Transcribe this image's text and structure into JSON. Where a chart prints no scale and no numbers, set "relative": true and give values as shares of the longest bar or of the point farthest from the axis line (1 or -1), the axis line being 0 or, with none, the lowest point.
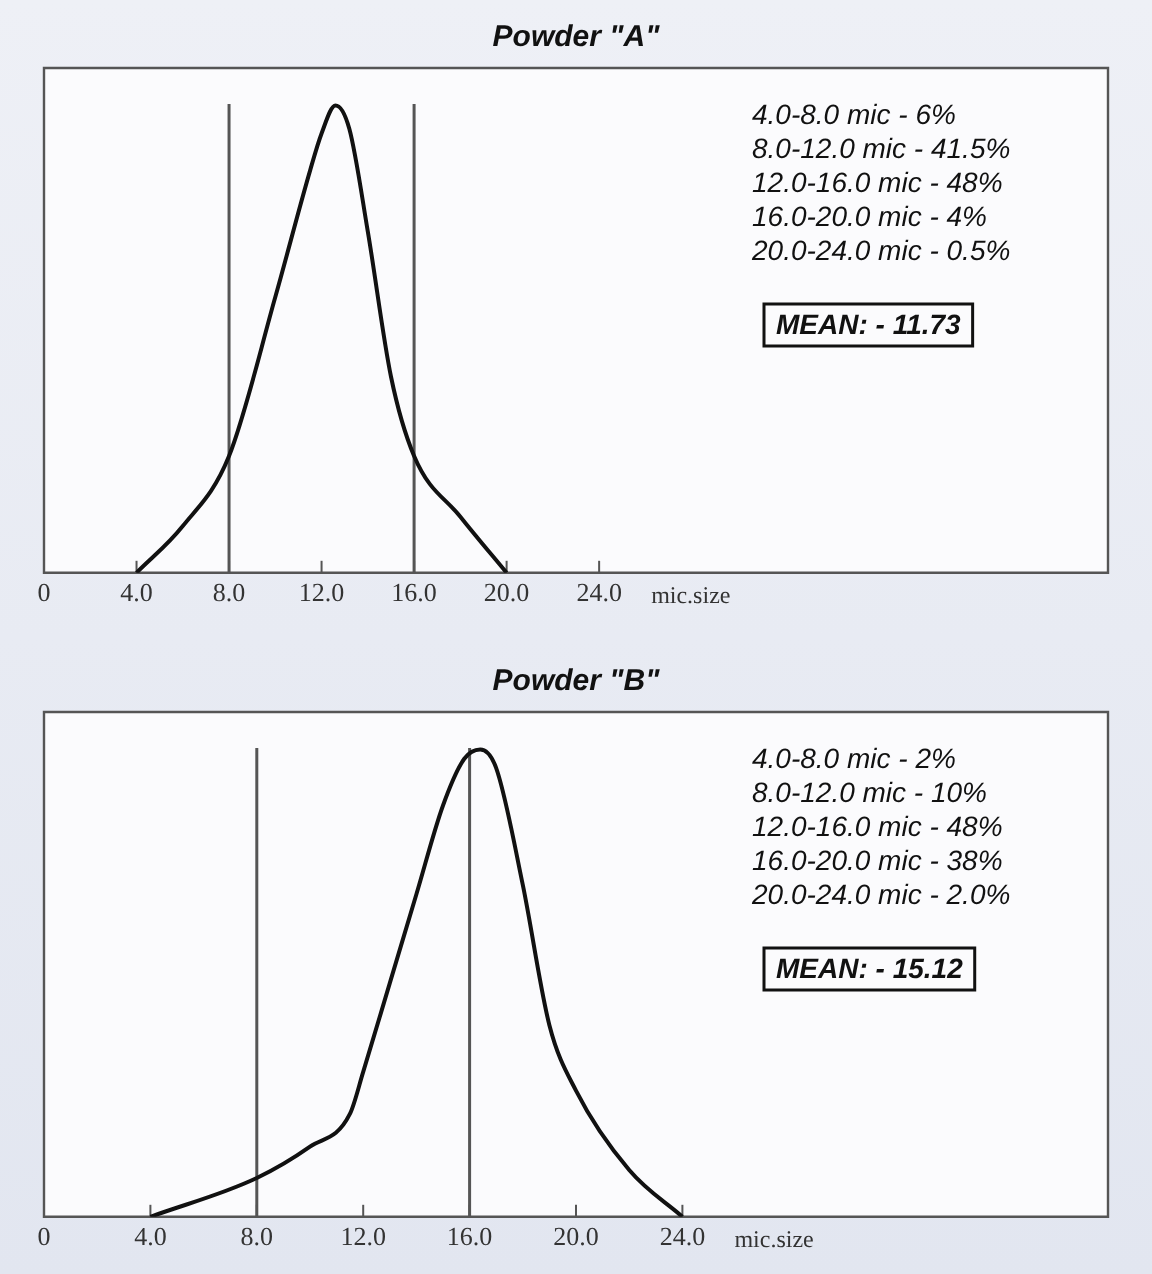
{
  "chart_data": [
    {
      "type": "line",
      "title": "Powder \"A\"",
      "xlabel": "mic.size",
      "relative": true,
      "marker": "none",
      "line_style": "solid",
      "legend": false,
      "xlim": [
        0,
        46
      ],
      "xticks": [
        0,
        {
          "value": 4,
          "label": "4.0"
        },
        {
          "value": 8,
          "label": "8.0"
        },
        {
          "value": 12,
          "label": "12.0"
        },
        {
          "value": 16,
          "label": "16.0"
        },
        {
          "value": 20,
          "label": "20.0"
        },
        {
          "value": 24,
          "label": "24.0"
        }
      ],
      "x": [
        4,
        6,
        8,
        10,
        11.5,
        12,
        12.6,
        13.2,
        14,
        15,
        16,
        18,
        20
      ],
      "series": [
        {
          "color": "#111111",
          "values": [
            0,
            0.1,
            0.25,
            0.59,
            0.86,
            0.94,
            1,
            0.95,
            0.73,
            0.42,
            0.25,
            0.12,
            0
          ]
        }
      ],
      "ref_lines": [
        {
          "axis": "x",
          "value": 8,
          "color": "#555555"
        },
        {
          "axis": "x",
          "value": 16,
          "color": "#555555"
        }
      ],
      "annotations": [
        "4.0-8.0 mic - 6%",
        "8.0-12.0 mic - 41.5%",
        "12.0-16.0 mic - 48%",
        "16.0-20.0 mic - 4%",
        "20.0-24.0 mic - 0.5%",
        "MEAN: - 11.73"
      ]
    },
    {
      "type": "line",
      "title": "Powder \"B\"",
      "xlabel": "mic.size",
      "relative": true,
      "marker": "none",
      "line_style": "solid",
      "legend": false,
      "xlim": [
        0,
        40
      ],
      "xticks": [
        0,
        {
          "value": 4,
          "label": "4.0"
        },
        {
          "value": 8,
          "label": "8.0"
        },
        {
          "value": 12,
          "label": "12.0"
        },
        {
          "value": 16,
          "label": "16.0"
        },
        {
          "value": 20,
          "label": "20.0"
        },
        {
          "value": 24,
          "label": "24.0"
        }
      ],
      "x": [
        4,
        8,
        10,
        11.5,
        12,
        13,
        14,
        15,
        15.8,
        16.4,
        17,
        18,
        19,
        20,
        22,
        24
      ],
      "series": [
        {
          "color": "#111111",
          "values": [
            0,
            0.083,
            0.15,
            0.22,
            0.31,
            0.5,
            0.69,
            0.88,
            0.98,
            1,
            0.96,
            0.71,
            0.41,
            0.27,
            0.1,
            0
          ]
        }
      ],
      "ref_lines": [
        {
          "axis": "x",
          "value": 8,
          "color": "#555555"
        },
        {
          "axis": "x",
          "value": 16,
          "color": "#555555"
        }
      ],
      "annotations": [
        "4.0-8.0 mic - 2%",
        "8.0-12.0 mic - 10%",
        "12.0-16.0 mic - 48%",
        "16.0-20.0 mic - 38%",
        "20.0-24.0 mic - 2.0%",
        "MEAN: - 15.12"
      ]
    }
  ]
}
